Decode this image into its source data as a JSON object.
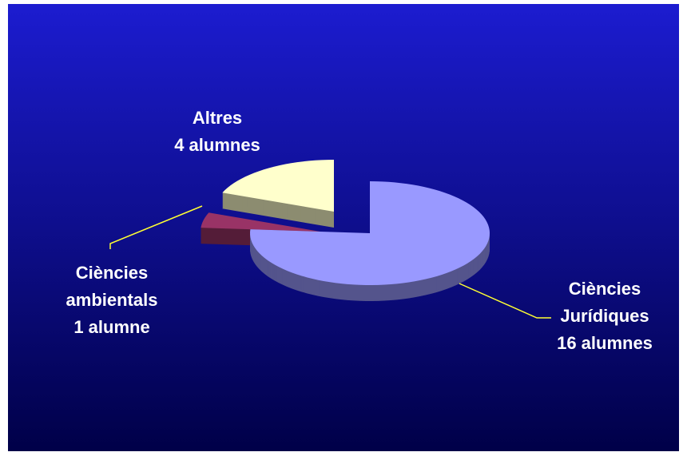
{
  "chart_data": {
    "type": "pie",
    "categories": [
      "Ciències Jurídiques",
      "Ciències ambientals",
      "Altres"
    ],
    "values": [
      16,
      1,
      4
    ],
    "value_labels": [
      "16 alumnes",
      "1 alumne",
      "4 alumnes"
    ],
    "colors": [
      "#9999ff",
      "#993366",
      "#ffffcc"
    ]
  }
}
